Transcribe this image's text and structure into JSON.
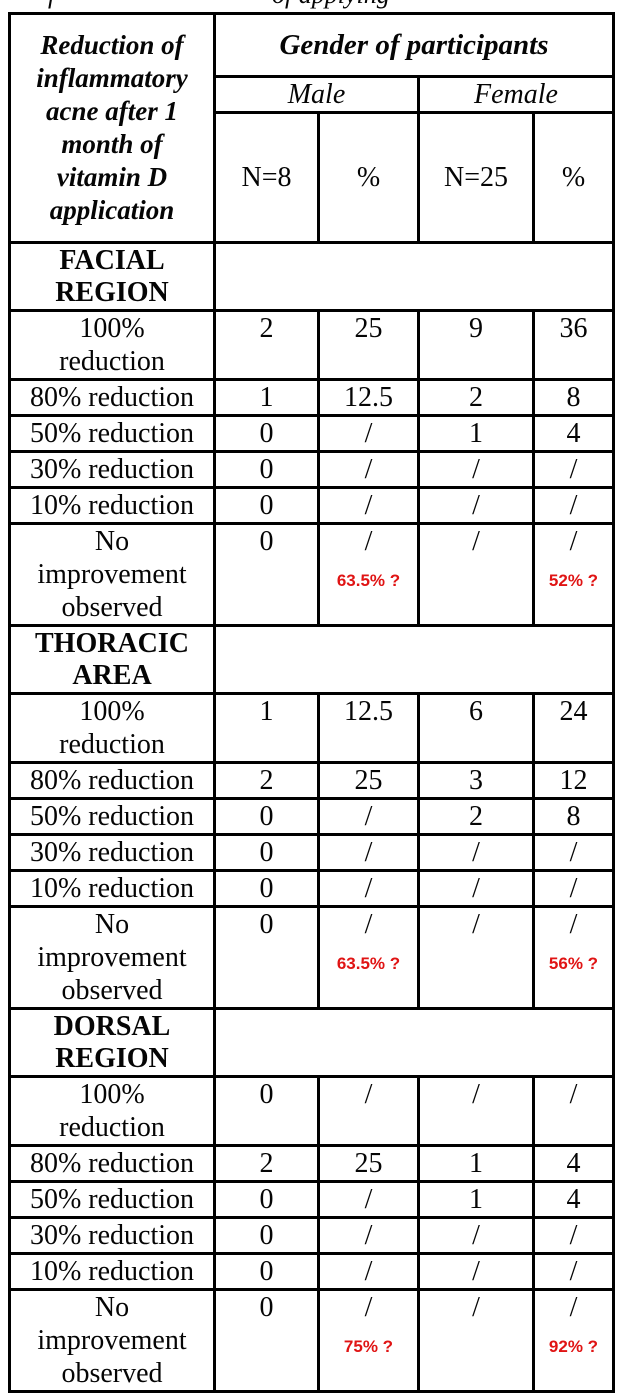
{
  "clipped_caption": {
    "fragment_left": "f",
    "fragment_right": "of applying"
  },
  "table": {
    "row_header_title": "Reduction of\ninflammatory\nacne after 1\nmonth of\nvitamin D\napplication",
    "group_header": "Gender of participants",
    "genders": [
      {
        "label": "Male",
        "n_label": "N=8",
        "pct_label": "%"
      },
      {
        "label": "Female",
        "n_label": "N=25",
        "pct_label": "%"
      }
    ],
    "sections": [
      {
        "title": "FACIAL\nREGION",
        "rows": [
          {
            "label": "100%\nreduction",
            "cells": [
              "2",
              "25",
              "9",
              "36"
            ]
          },
          {
            "label": "80% reduction",
            "cells": [
              "1",
              "12.5",
              "2",
              "8"
            ]
          },
          {
            "label": "50% reduction",
            "cells": [
              "0",
              "/",
              "1",
              "4"
            ]
          },
          {
            "label": "30% reduction",
            "cells": [
              "0",
              "/",
              "/",
              "/"
            ]
          },
          {
            "label": "10% reduction",
            "cells": [
              "0",
              "/",
              "/",
              "/"
            ]
          },
          {
            "label": "No\nimprovement\nobserved",
            "cells": [
              "0",
              "/",
              "/",
              "/"
            ],
            "annotations": {
              "male": "63.5% ?",
              "female": "52% ?"
            }
          }
        ]
      },
      {
        "title": "THORACIC\nAREA",
        "rows": [
          {
            "label": "100%\nreduction",
            "cells": [
              "1",
              "12.5",
              "6",
              "24"
            ]
          },
          {
            "label": "80% reduction",
            "cells": [
              "2",
              "25",
              "3",
              "12"
            ]
          },
          {
            "label": "50% reduction",
            "cells": [
              "0",
              "/",
              "2",
              "8"
            ]
          },
          {
            "label": "30% reduction",
            "cells": [
              "0",
              "/",
              "/",
              "/"
            ]
          },
          {
            "label": "10% reduction",
            "cells": [
              "0",
              "/",
              "/",
              "/"
            ]
          },
          {
            "label": "No\nimprovement\nobserved",
            "cells": [
              "0",
              "/",
              "/",
              "/"
            ],
            "annotations": {
              "male": "63.5% ?",
              "female": "56% ?"
            }
          }
        ]
      },
      {
        "title": "DORSAL\nREGION",
        "rows": [
          {
            "label": "100%\nreduction",
            "cells": [
              "0",
              "/",
              "/",
              "/"
            ]
          },
          {
            "label": "80% reduction",
            "cells": [
              "2",
              "25",
              "1",
              "4"
            ]
          },
          {
            "label": "50% reduction",
            "cells": [
              "0",
              "/",
              "1",
              "4"
            ]
          },
          {
            "label": "30% reduction",
            "cells": [
              "0",
              "/",
              "/",
              "/"
            ]
          },
          {
            "label": "10% reduction",
            "cells": [
              "0",
              "/",
              "/",
              "/"
            ]
          },
          {
            "label": "No\nimprovement\nobserved",
            "cells": [
              "0",
              "/",
              "/",
              "/"
            ],
            "annotations": {
              "male": "75% ?",
              "female": "92% ?"
            }
          }
        ]
      }
    ]
  },
  "colors": {
    "annotation_red": "#e01414",
    "border": "#000000",
    "text": "#050505",
    "background": "#ffffff"
  }
}
